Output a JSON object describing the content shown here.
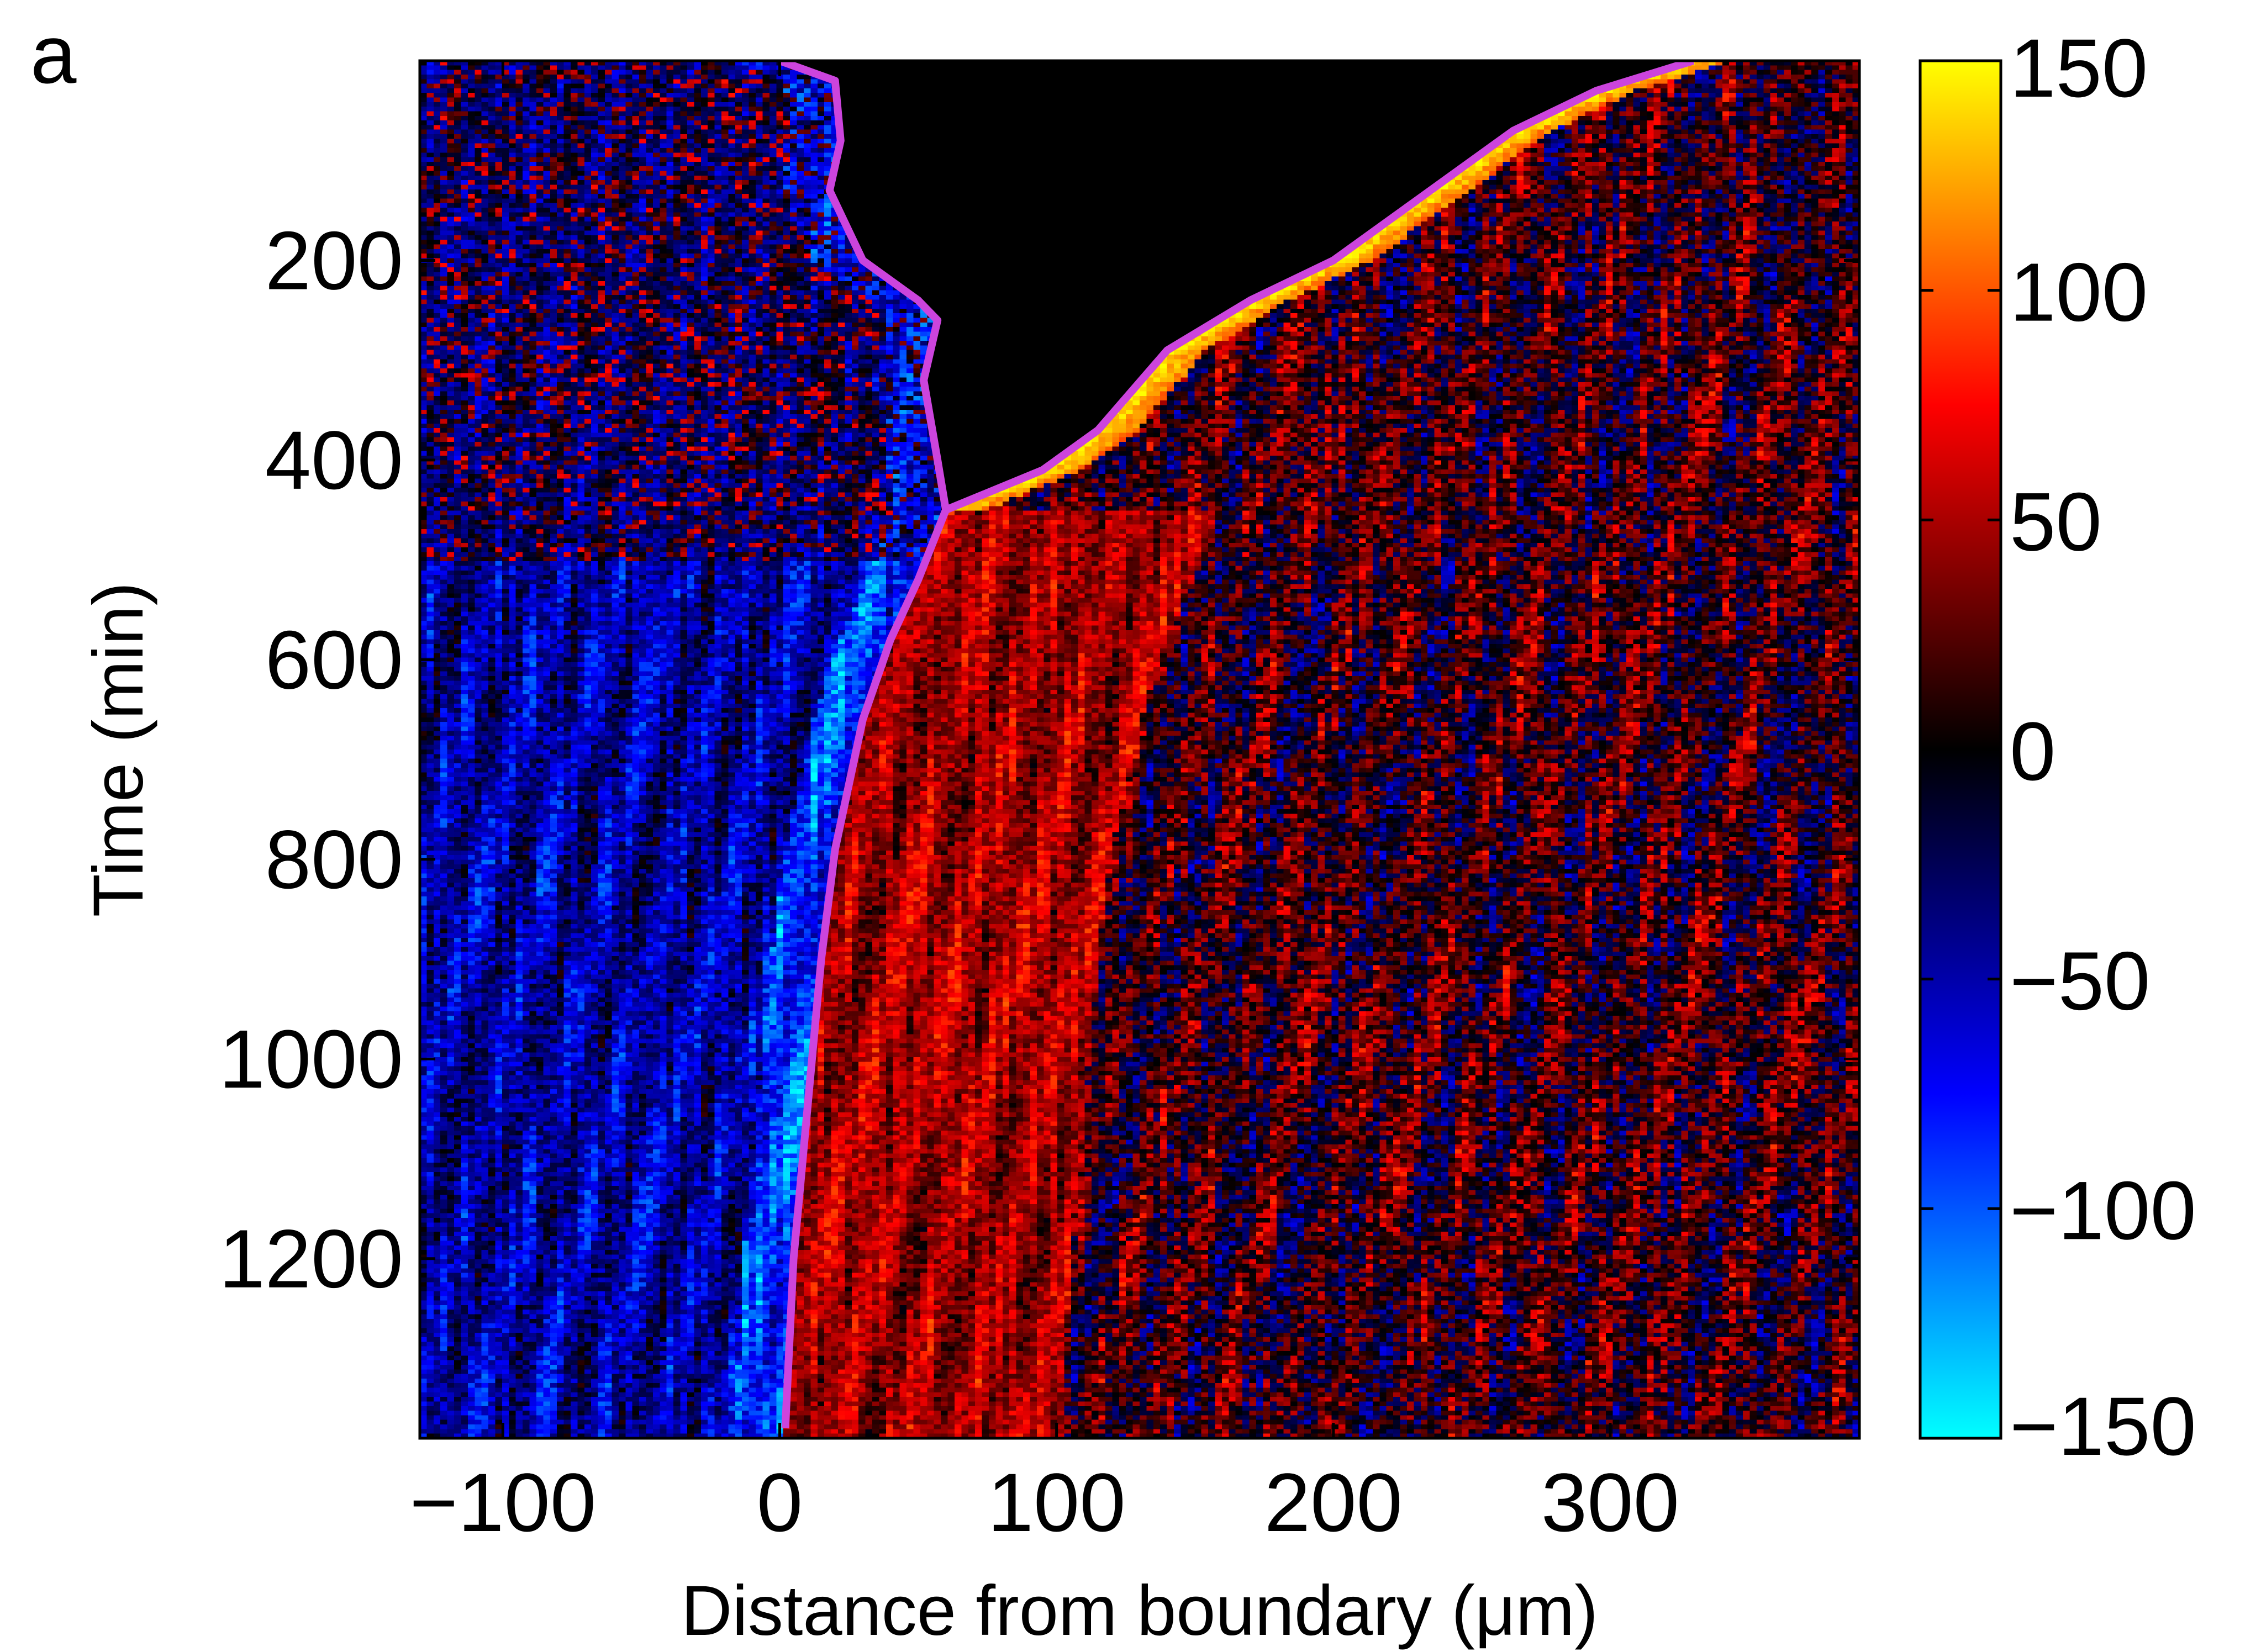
{
  "panel_label": "a",
  "chart_data": {
    "type": "heatmap",
    "title": "",
    "xlabel": "Distance from boundary (μm)",
    "ylabel": "Time (min)",
    "xlim": [
      -130,
      390
    ],
    "ylim": [
      0,
      1380
    ],
    "y_reversed": true,
    "xticks": [
      -100,
      0,
      100,
      200,
      300
    ],
    "xtick_labels": [
      "−100",
      "0",
      "100",
      "200",
      "300"
    ],
    "yticks": [
      200,
      400,
      600,
      800,
      1000,
      1200
    ],
    "ytick_labels": [
      "200",
      "400",
      "600",
      "800",
      "1000",
      "1200"
    ],
    "colorbar": {
      "range": [
        -150,
        150
      ],
      "ticks": [
        150,
        100,
        50,
        0,
        -50,
        -100,
        -150
      ],
      "tick_labels": [
        "150",
        "100",
        "50",
        "0",
        "−50",
        "−100",
        "−150"
      ],
      "colormap_stops": [
        {
          "value": -150,
          "color": "#00ffff"
        },
        {
          "value": -75,
          "color": "#0000ff"
        },
        {
          "value": 0,
          "color": "#000000"
        },
        {
          "value": 75,
          "color": "#ff0000"
        },
        {
          "value": 150,
          "color": "#ffff00"
        }
      ]
    },
    "no_data_color": "#000000",
    "grid": false,
    "summary_regions": [
      {
        "region": "x < boundary, t < 500",
        "approx_value": -40
      },
      {
        "region": "x < boundary, t > 500",
        "approx_value": -60
      },
      {
        "region": "0 < x < 100, t > 500",
        "approx_value": 60
      },
      {
        "region": "x > 100, t > 400",
        "approx_value": 25
      },
      {
        "region": "along right edge of empty region",
        "approx_value": 150
      }
    ],
    "boundary_line": {
      "color": "#cc44dd",
      "description": "magenta contour outlining the empty (black) region",
      "left_edge": [
        {
          "x": 0,
          "t": 0
        },
        {
          "x": 20,
          "t": 20
        },
        {
          "x": 22,
          "t": 80
        },
        {
          "x": 18,
          "t": 130
        },
        {
          "x": 30,
          "t": 200
        },
        {
          "x": 50,
          "t": 240
        },
        {
          "x": 57,
          "t": 260
        },
        {
          "x": 52,
          "t": 320
        },
        {
          "x": 57,
          "t": 400
        },
        {
          "x": 60,
          "t": 450
        },
        {
          "x": 50,
          "t": 520
        },
        {
          "x": 40,
          "t": 580
        },
        {
          "x": 30,
          "t": 660
        },
        {
          "x": 20,
          "t": 790
        },
        {
          "x": 15,
          "t": 900
        },
        {
          "x": 10,
          "t": 1050
        },
        {
          "x": 5,
          "t": 1200
        },
        {
          "x": 2,
          "t": 1370
        }
      ],
      "right_edge": [
        {
          "x": 60,
          "t": 450
        },
        {
          "x": 95,
          "t": 410
        },
        {
          "x": 115,
          "t": 370
        },
        {
          "x": 140,
          "t": 290
        },
        {
          "x": 170,
          "t": 240
        },
        {
          "x": 200,
          "t": 200
        },
        {
          "x": 230,
          "t": 140
        },
        {
          "x": 265,
          "t": 70
        },
        {
          "x": 295,
          "t": 30
        },
        {
          "x": 330,
          "t": 0
        }
      ]
    }
  }
}
